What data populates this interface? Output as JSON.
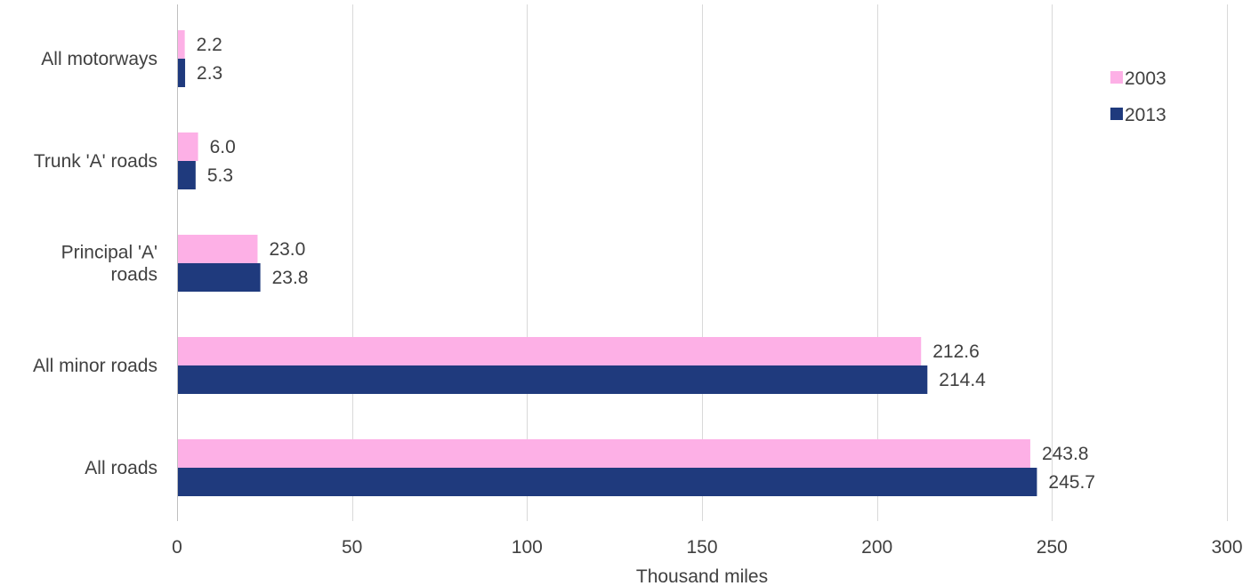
{
  "chart_data": {
    "type": "bar",
    "orientation": "horizontal",
    "title": "",
    "xlabel": "Thousand miles",
    "ylabel": "",
    "xlim": [
      0,
      300
    ],
    "x_ticks": [
      0,
      50,
      100,
      150,
      200,
      250,
      300
    ],
    "grid": "vertical",
    "legend_position": "right",
    "categories": [
      [
        "All motorways"
      ],
      [
        "Trunk 'A' roads"
      ],
      [
        "Principal 'A'",
        "roads"
      ],
      [
        "All minor roads"
      ],
      [
        "All roads"
      ]
    ],
    "series": [
      {
        "name": "2003",
        "color": "#fdb0e6",
        "values": [
          2.2,
          6.0,
          23.0,
          212.6,
          243.8
        ]
      },
      {
        "name": "2013",
        "color": "#1f3a7d",
        "values": [
          2.3,
          5.3,
          23.8,
          214.4,
          245.7
        ]
      }
    ]
  },
  "colors": {
    "gridline": "#d9d9d9",
    "axis_line": "#bfbfbf",
    "text": "#404040"
  }
}
